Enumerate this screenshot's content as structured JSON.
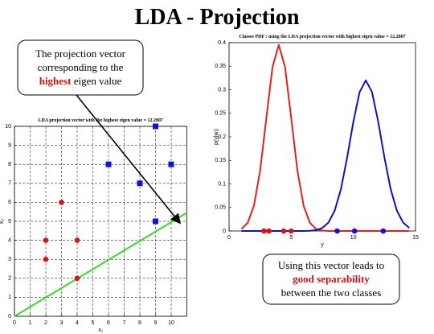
{
  "title": "LDA - Projection",
  "callouts": [
    {
      "lines": [
        "The projection vector",
        "corresponding to the"
      ],
      "highlight": "highest",
      "after": "eigen value"
    },
    {
      "lines": [
        "Using this vector leads to"
      ],
      "highlight": "good separability",
      "after": "between the two classes"
    }
  ],
  "chart_data": [
    {
      "type": "scatter",
      "title": "LDA projection vector with the highest eigen value = 12.2007",
      "xlabel": "x₁",
      "ylabel": "x₂",
      "grid": true,
      "xlim": [
        0,
        11
      ],
      "ylim": [
        0,
        10
      ],
      "xticks": [
        0,
        1,
        2,
        3,
        4,
        5,
        6,
        7,
        8,
        9,
        10
      ],
      "yticks": [
        0,
        1,
        2,
        3,
        4,
        5,
        6,
        7,
        8,
        9,
        10
      ],
      "series": [
        {
          "mode": "markers",
          "marker": "circle",
          "color": "#dd1111",
          "x": [
            2,
            2,
            3,
            4,
            4
          ],
          "values": [
            4,
            3,
            6,
            4,
            2
          ]
        },
        {
          "mode": "markers",
          "marker": "square",
          "color": "#1111dd",
          "x": [
            6,
            8,
            9,
            9,
            10
          ],
          "values": [
            8,
            7,
            10,
            5,
            8
          ]
        },
        {
          "mode": "line",
          "color": "#33dd22",
          "x": [
            0,
            11
          ],
          "values": [
            0,
            5.45
          ]
        }
      ]
    },
    {
      "type": "line",
      "title": "Classes PDF : using the LDA projection vector with highest eigen value = 12.2007",
      "xlabel": "y",
      "ylabel": "p(y|wᵢ)",
      "grid": false,
      "xlim": [
        0,
        15
      ],
      "ylim": [
        0,
        0.4
      ],
      "xticks": [
        0,
        5,
        10,
        15
      ],
      "yticks": [
        0,
        0.05,
        0.1,
        0.15,
        0.2,
        0.25,
        0.3,
        0.35,
        0.4
      ],
      "series": [
        {
          "mode": "line",
          "color": "#e02020",
          "x": [
            1,
            1.5,
            2,
            2.5,
            3,
            3.5,
            4,
            4.5,
            5,
            5.5,
            6,
            6.5,
            7,
            7.5,
            8,
            8.5,
            9,
            9.5,
            10,
            10.5,
            11,
            11.5,
            12,
            12.5,
            13,
            13.5,
            14,
            14.5
          ],
          "values": [
            0.0044,
            0.0173,
            0.0535,
            0.128,
            0.24,
            0.349,
            0.395,
            0.349,
            0.24,
            0.128,
            0.0535,
            0.0173,
            0.0044,
            0.0009,
            0,
            0,
            0,
            0,
            0,
            0,
            0,
            0,
            0,
            0,
            0,
            0,
            0,
            0
          ]
        },
        {
          "mode": "line",
          "color": "#1010c0",
          "x": [
            1,
            1.5,
            2,
            2.5,
            3,
            3.5,
            4,
            4.5,
            5,
            5.5,
            6,
            6.5,
            7,
            7.5,
            8,
            8.5,
            9,
            9.5,
            10,
            10.5,
            11,
            11.5,
            12,
            12.5,
            13,
            13.5,
            14,
            14.5
          ],
          "values": [
            0,
            0,
            0,
            0,
            0,
            0,
            0,
            0,
            0,
            0,
            0.0001,
            0.0005,
            0.0019,
            0.0063,
            0.018,
            0.0433,
            0.089,
            0.156,
            0.232,
            0.295,
            0.32,
            0.295,
            0.232,
            0.156,
            0.089,
            0.0433,
            0.018,
            0.0063
          ]
        },
        {
          "mode": "markers",
          "marker": "circle",
          "color": "#dd1111",
          "x": [
            2.8,
            3.2,
            4.4,
            5.0
          ],
          "values": [
            0,
            0,
            0,
            0
          ]
        },
        {
          "mode": "markers",
          "marker": "circle",
          "color": "#1111dd",
          "x": [
            8.7,
            10.1,
            12.4
          ],
          "values": [
            0,
            0,
            0
          ]
        }
      ]
    }
  ]
}
